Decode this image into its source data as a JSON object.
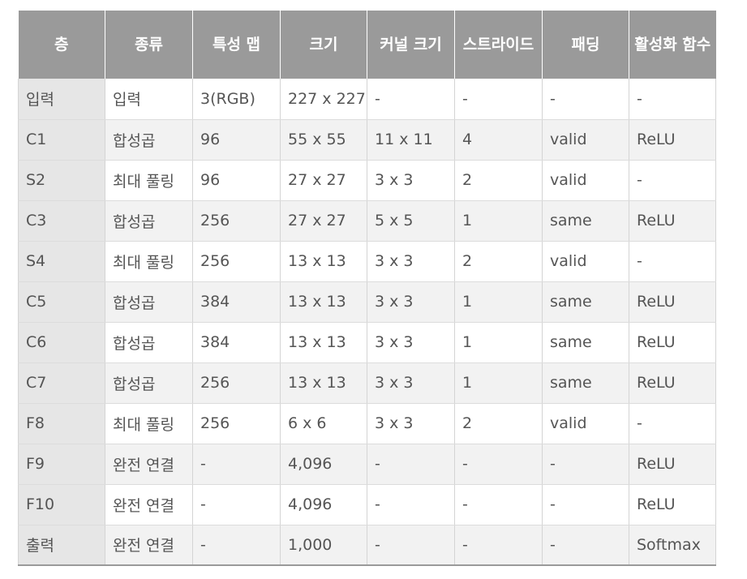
{
  "table": {
    "headers": [
      "층",
      "종류",
      "특성 맵",
      "크기",
      "커널 크기",
      "스트라이드",
      "패딩",
      "활성화 함수"
    ],
    "rows": [
      [
        "입력",
        "입력",
        "3(RGB)",
        "227 x 227",
        "-",
        "-",
        "-",
        "-"
      ],
      [
        "C1",
        "합성곱",
        "96",
        "55 x 55",
        "11 x 11",
        "4",
        "valid",
        "ReLU"
      ],
      [
        "S2",
        "최대 풀링",
        "96",
        "27 x 27",
        "3 x 3",
        "2",
        "valid",
        "-"
      ],
      [
        "C3",
        "합성곱",
        "256",
        "27 x 27",
        "5 x 5",
        "1",
        "same",
        "ReLU"
      ],
      [
        "S4",
        "최대 풀링",
        "256",
        "13 x 13",
        "3 x 3",
        "2",
        "valid",
        "-"
      ],
      [
        "C5",
        "합성곱",
        "384",
        "13 x 13",
        "3 x 3",
        "1",
        "same",
        "ReLU"
      ],
      [
        "C6",
        "합성곱",
        "384",
        "13 x 13",
        "3 x 3",
        "1",
        "same",
        "ReLU"
      ],
      [
        "C7",
        "합성곱",
        "256",
        "13 x 13",
        "3 x 3",
        "1",
        "same",
        "ReLU"
      ],
      [
        "F8",
        "최대 풀링",
        "256",
        "6 x 6",
        "3 x 3",
        "2",
        "valid",
        "-"
      ],
      [
        "F9",
        "완전 연결",
        "-",
        "4,096",
        "-",
        "-",
        "-",
        "ReLU"
      ],
      [
        "F10",
        "완전 연결",
        "-",
        "4,096",
        "-",
        "-",
        "-",
        "ReLU"
      ],
      [
        "출력",
        "완전 연결",
        "-",
        "1,000",
        "-",
        "-",
        "-",
        "Softmax"
      ]
    ]
  }
}
